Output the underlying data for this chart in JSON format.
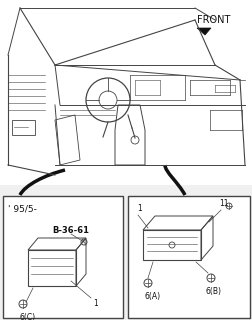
{
  "bg_color": "#f0f0f0",
  "white": "#ffffff",
  "lc": "#444444",
  "lc_thick": "#111111",
  "front_label": "FRONT",
  "left_box_label": "' 95/5-",
  "left_box_part": "B-36-61",
  "labels": {
    "left_1": "1",
    "left_6c": "6(C)",
    "right_1": "1",
    "right_11": "11",
    "right_6a": "6(A)",
    "right_6b": "6(B)"
  },
  "figsize": [
    2.53,
    3.2
  ],
  "dpi": 100
}
